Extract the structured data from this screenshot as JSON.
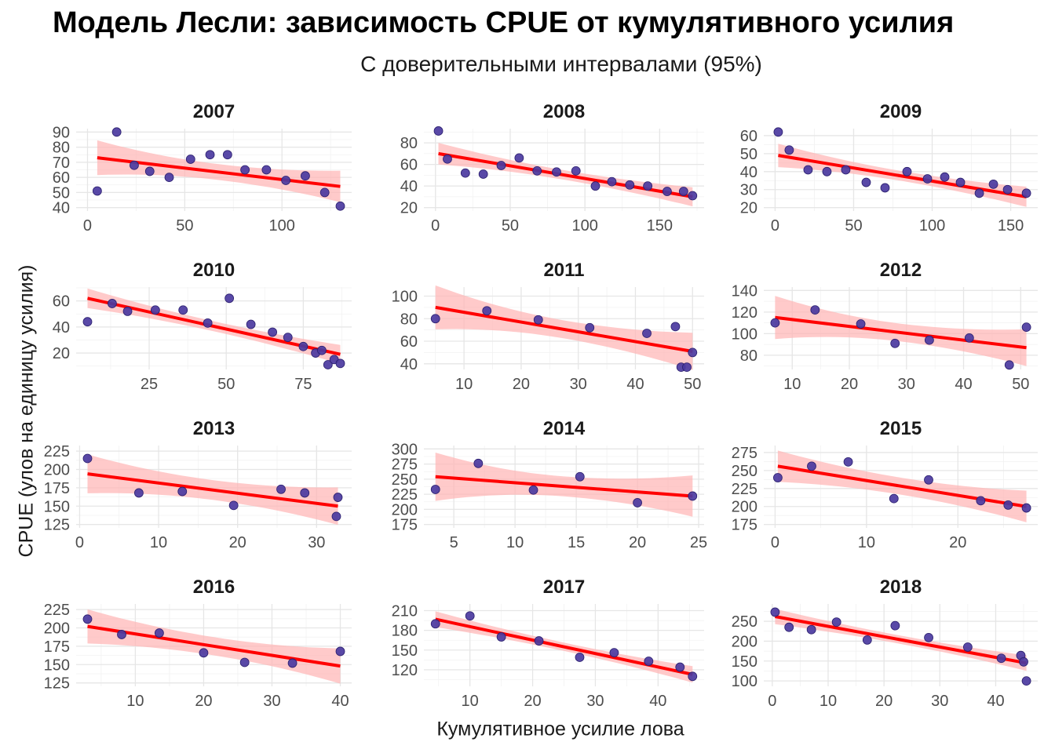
{
  "title": "Модель Лесли: зависимость CPUE от кумулятивного усилия",
  "subtitle": "С доверительными интервалами (95%)",
  "xlabel": "Кумулятивное усилие лова",
  "ylabel": "CPUE (улов на единицу усилия)",
  "colors": {
    "point": "#4b3aa0",
    "line": "#ff0000",
    "ribbon": "#ffb3b3",
    "grid": "#e6e6e6"
  },
  "chart_data": [
    {
      "type": "scatter",
      "title": "2007",
      "xlim": [
        0,
        130
      ],
      "ylim": [
        40,
        90
      ],
      "xticks": [
        0,
        50,
        100
      ],
      "yticks": [
        40,
        50,
        60,
        70,
        80,
        90
      ],
      "x": [
        5,
        15,
        24,
        32,
        42,
        53,
        63,
        72,
        81,
        92,
        102,
        112,
        122,
        130
      ],
      "y": [
        51,
        90,
        68,
        64,
        60,
        72,
        75,
        75,
        65,
        65,
        58,
        61,
        50,
        41
      ],
      "fit": [
        [
          5,
          73
        ],
        [
          130,
          54
        ]
      ],
      "band_at_start": [
        62,
        85
      ],
      "band_at_end": [
        45,
        64
      ]
    },
    {
      "type": "scatter",
      "title": "2008",
      "xlim": [
        0,
        172
      ],
      "ylim": [
        20,
        90
      ],
      "xticks": [
        0,
        50,
        100,
        150
      ],
      "yticks": [
        20,
        40,
        60,
        80
      ],
      "x": [
        2,
        8,
        20,
        32,
        44,
        56,
        68,
        81,
        94,
        107,
        118,
        130,
        142,
        155,
        166,
        172
      ],
      "y": [
        91,
        65,
        52,
        51,
        59,
        66,
        54,
        53,
        54,
        40,
        44,
        41,
        40,
        35,
        35,
        31
      ],
      "fit": [
        [
          2,
          70
        ],
        [
          172,
          30
        ]
      ],
      "band_at_start": [
        60,
        80
      ],
      "band_at_end": [
        22,
        38
      ]
    },
    {
      "type": "scatter",
      "title": "2009",
      "xlim": [
        0,
        160
      ],
      "ylim": [
        20,
        62
      ],
      "xticks": [
        0,
        50,
        100,
        150
      ],
      "yticks": [
        20,
        30,
        40,
        50,
        60
      ],
      "x": [
        2,
        9,
        21,
        33,
        45,
        58,
        70,
        84,
        97,
        108,
        118,
        130,
        139,
        148,
        160
      ],
      "y": [
        62,
        52,
        41,
        40,
        41,
        34,
        31,
        40,
        36,
        37,
        34,
        28,
        33,
        30,
        28
      ],
      "fit": [
        [
          2,
          49
        ],
        [
          160,
          26
        ]
      ],
      "band_at_start": [
        43,
        56
      ],
      "band_at_end": [
        21,
        31
      ]
    },
    {
      "type": "scatter",
      "title": "2010",
      "xlim": [
        5,
        87
      ],
      "ylim": [
        10,
        68
      ],
      "xticks": [
        25,
        50,
        75
      ],
      "yticks": [
        20,
        40,
        60
      ],
      "x": [
        5,
        13,
        18,
        27,
        36,
        44,
        51,
        58,
        65,
        70,
        75,
        79,
        81,
        83,
        85,
        87
      ],
      "y": [
        44,
        58,
        52,
        53,
        53,
        43,
        62,
        42,
        36,
        32,
        25,
        20,
        22,
        11,
        15,
        12
      ],
      "fit": [
        [
          5,
          62
        ],
        [
          87,
          19
        ]
      ],
      "band_at_start": [
        55,
        70
      ],
      "band_at_end": [
        12,
        26
      ]
    },
    {
      "type": "scatter",
      "title": "2011",
      "xlim": [
        5,
        50
      ],
      "ylim": [
        38,
        105
      ],
      "xticks": [
        10,
        20,
        30,
        40,
        50
      ],
      "yticks": [
        40,
        60,
        80,
        100
      ],
      "x": [
        5,
        14,
        23,
        32,
        42,
        47,
        48,
        49,
        50
      ],
      "y": [
        80,
        87,
        79,
        72,
        67,
        73,
        37,
        37,
        50
      ],
      "fit": [
        [
          5,
          90
        ],
        [
          50,
          51
        ]
      ],
      "band_at_start": [
        70,
        109
      ],
      "band_at_end": [
        36,
        65
      ]
    },
    {
      "type": "scatter",
      "title": "2012",
      "xlim": [
        7,
        51
      ],
      "ylim": [
        70,
        140
      ],
      "xticks": [
        10,
        20,
        30,
        40,
        50
      ],
      "yticks": [
        80,
        100,
        120,
        140
      ],
      "x": [
        7,
        14,
        22,
        28,
        34,
        41,
        48,
        51
      ],
      "y": [
        110,
        122,
        109,
        91,
        94,
        96,
        71,
        106
      ],
      "fit": [
        [
          7,
          115
        ],
        [
          51,
          87
        ]
      ],
      "band_at_start": [
        95,
        135
      ],
      "band_at_end": [
        72,
        102
      ]
    },
    {
      "type": "scatter",
      "title": "2013",
      "xlim": [
        1,
        33
      ],
      "ylim": [
        125,
        228
      ],
      "xticks": [
        0,
        10,
        20,
        30
      ],
      "yticks": [
        125,
        150,
        175,
        200,
        225
      ],
      "x": [
        1,
        7.5,
        13,
        19.5,
        25.5,
        28.5,
        32.5,
        32.7
      ],
      "y": [
        215,
        168,
        170,
        151,
        173,
        168,
        136,
        162
      ],
      "fit": [
        [
          1,
          194
        ],
        [
          32.7,
          150
        ]
      ],
      "band_at_start": [
        168,
        221
      ],
      "band_at_end": [
        127,
        176
      ]
    },
    {
      "type": "scatter",
      "title": "2014",
      "xlim": [
        3.5,
        24.5
      ],
      "ylim": [
        175,
        300
      ],
      "xticks": [
        5,
        10,
        15,
        20,
        25
      ],
      "yticks": [
        175,
        200,
        225,
        250,
        275,
        300
      ],
      "x": [
        3.5,
        7,
        11.5,
        15.3,
        20,
        24.5
      ],
      "y": [
        233,
        276,
        232,
        254,
        211,
        222
      ],
      "fit": [
        [
          3.5,
          254
        ],
        [
          24.5,
          222
        ]
      ],
      "band_at_start": [
        216,
        296
      ],
      "band_at_end": [
        192,
        252
      ]
    },
    {
      "type": "scatter",
      "title": "2015",
      "xlim": [
        0,
        27.5
      ],
      "ylim": [
        175,
        280
      ],
      "xticks": [
        0,
        10,
        20
      ],
      "yticks": [
        175,
        200,
        225,
        250,
        275
      ],
      "x": [
        0.3,
        4,
        8,
        13,
        16.8,
        22.5,
        25.5,
        27.5
      ],
      "y": [
        240,
        256,
        262,
        211,
        237,
        208,
        202,
        198
      ],
      "fit": [
        [
          0.3,
          256
        ],
        [
          27.5,
          200
        ]
      ],
      "band_at_start": [
        235,
        278
      ],
      "band_at_end": [
        178,
        222
      ]
    },
    {
      "type": "scatter",
      "title": "2016",
      "xlim": [
        3,
        40
      ],
      "ylim": [
        125,
        228
      ],
      "xticks": [
        10,
        20,
        30,
        40
      ],
      "yticks": [
        125,
        150,
        175,
        200,
        225
      ],
      "x": [
        3,
        8,
        13.5,
        20,
        26,
        33,
        40
      ],
      "y": [
        212,
        191,
        193,
        166,
        153,
        152,
        168
      ],
      "fit": [
        [
          3,
          202
        ],
        [
          40,
          148
        ]
      ],
      "band_at_start": [
        180,
        225
      ],
      "band_at_end": [
        124,
        172
      ]
    },
    {
      "type": "scatter",
      "title": "2017",
      "xlim": [
        4.5,
        45.5
      ],
      "ylim": [
        100,
        215
      ],
      "xticks": [
        10,
        20,
        30,
        40
      ],
      "yticks": [
        120,
        150,
        180,
        210
      ],
      "x": [
        4.5,
        10,
        15,
        21,
        27.5,
        33,
        38.5,
        43.5,
        45.5
      ],
      "y": [
        190,
        202,
        170,
        164,
        139,
        146,
        133,
        124,
        110
      ],
      "fit": [
        [
          4.5,
          197
        ],
        [
          45.5,
          113
        ]
      ],
      "band_at_start": [
        185,
        208
      ],
      "band_at_end": [
        101,
        126
      ]
    },
    {
      "type": "scatter",
      "title": "2018",
      "xlim": [
        0.5,
        45.5
      ],
      "ylim": [
        95,
        285
      ],
      "xticks": [
        0,
        10,
        20,
        30,
        40
      ],
      "yticks": [
        100,
        150,
        200,
        250
      ],
      "x": [
        0.5,
        3,
        7,
        11.5,
        17,
        22,
        28,
        35,
        41,
        44.5,
        45,
        45.5
      ],
      "y": [
        273,
        235,
        229,
        248,
        203,
        239,
        209,
        185,
        157,
        164,
        148,
        100
      ],
      "fit": [
        [
          0.5,
          262
        ],
        [
          45.5,
          145
        ]
      ],
      "band_at_start": [
        245,
        283
      ],
      "band_at_end": [
        126,
        165
      ]
    }
  ]
}
